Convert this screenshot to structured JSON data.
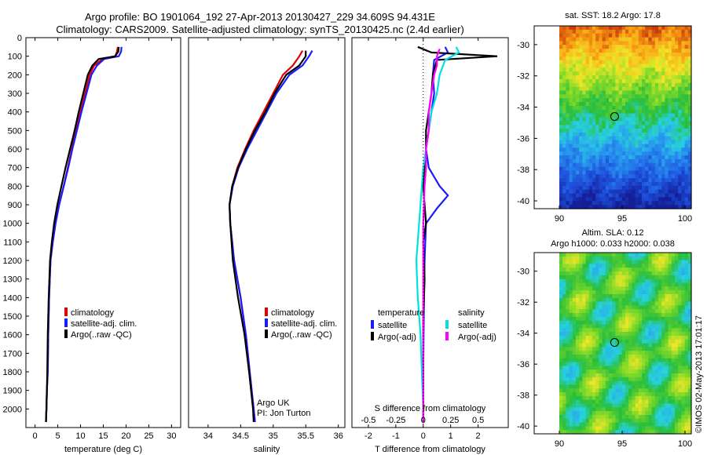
{
  "header": {
    "line1": "Argo profile: BO 1901064_192 27-Apr-2013 20130427_229 34.609S 94.431E",
    "line2": "Climatology: CARS2009. Satellite-adjusted climatology: synTS_20130425.nc (2.4d earlier)"
  },
  "colors": {
    "climatology": "#e00000",
    "satellite": "#1a1aff",
    "argo": "#000000",
    "satellite_salt": "#00e0e0",
    "argo_salt_adj": "#ff00ff"
  },
  "chart_data": [
    {
      "type": "line",
      "xlabel": "temperature (deg C)",
      "ylabel": "",
      "xlim": [
        -2,
        32
      ],
      "ylim": [
        2100,
        0
      ],
      "xticks": [
        0,
        5,
        10,
        15,
        20,
        25,
        30
      ],
      "yticks": [
        0,
        100,
        200,
        300,
        400,
        500,
        600,
        700,
        800,
        900,
        1000,
        1100,
        1200,
        1300,
        1400,
        1500,
        1600,
        1700,
        1800,
        1900,
        2000
      ],
      "legend": [
        "climatology",
        "satellite-adj. clim.",
        "Argo(..raw -QC)"
      ],
      "series": [
        {
          "name": "climatology",
          "color": "#e00000",
          "x": [
            18.2,
            18.0,
            17.6,
            14.8,
            13.0,
            12.0,
            11.0,
            10.0,
            9.0,
            8.1,
            7.2,
            6.3,
            5.3,
            4.5,
            3.9,
            3.4,
            3.1,
            2.9,
            2.8,
            2.6,
            2.5,
            2.4
          ],
          "y": [
            50,
            75,
            100,
            115,
            150,
            200,
            300,
            400,
            500,
            600,
            700,
            800,
            900,
            1000,
            1100,
            1200,
            1400,
            1600,
            1800,
            1900,
            2000,
            2070
          ]
        },
        {
          "name": "satellite-adj. clim.",
          "color": "#1a1aff",
          "x": [
            19.0,
            18.9,
            18.4,
            15.2,
            13.6,
            12.4,
            11.3,
            10.2,
            9.2,
            8.2,
            7.3,
            6.3,
            5.3,
            4.5,
            3.9,
            3.4,
            3.1,
            2.9,
            2.8,
            2.6,
            2.5,
            2.4
          ],
          "y": [
            50,
            75,
            100,
            115,
            150,
            200,
            300,
            400,
            500,
            600,
            700,
            800,
            900,
            1000,
            1100,
            1200,
            1400,
            1600,
            1800,
            1900,
            2000,
            2070
          ]
        },
        {
          "name": "Argo(..raw -QC)",
          "color": "#000000",
          "x": [
            18.4,
            18.3,
            17.6,
            14.0,
            12.6,
            11.6,
            10.6,
            9.6,
            8.7,
            7.7,
            6.7,
            5.8,
            4.9,
            4.2,
            3.7,
            3.3,
            3.0,
            2.8,
            2.7,
            2.6,
            2.5,
            2.4
          ],
          "y": [
            50,
            75,
            100,
            115,
            150,
            200,
            300,
            400,
            500,
            600,
            700,
            800,
            900,
            1000,
            1100,
            1200,
            1400,
            1600,
            1800,
            1900,
            2000,
            2070
          ]
        }
      ]
    },
    {
      "type": "line",
      "xlabel": "salinity",
      "ylabel": "",
      "xlim": [
        33.7,
        36.1
      ],
      "ylim": [
        2100,
        0
      ],
      "xticks": [
        34,
        34.5,
        35,
        35.5,
        36
      ],
      "yticks": [],
      "legend": [
        "climatology",
        "satellite-adj. clim.",
        "Argo(..raw -QC)"
      ],
      "annotation": [
        "Argo UK",
        "PI: Jon Turton"
      ],
      "series": [
        {
          "name": "climatology",
          "color": "#e00000",
          "x": [
            35.45,
            35.4,
            35.3,
            35.15,
            35.0,
            34.85,
            34.7,
            34.57,
            34.45,
            34.37,
            34.33,
            34.34,
            34.4,
            34.5,
            34.58,
            34.64,
            34.7,
            34.72
          ],
          "y": [
            70,
            100,
            150,
            200,
            300,
            400,
            500,
            600,
            700,
            800,
            900,
            1000,
            1200,
            1400,
            1600,
            1800,
            2000,
            2070
          ]
        },
        {
          "name": "satellite-adj. clim.",
          "color": "#1a1aff",
          "x": [
            35.6,
            35.55,
            35.45,
            35.25,
            35.05,
            34.9,
            34.75,
            34.6,
            34.47,
            34.38,
            34.33,
            34.34,
            34.4,
            34.5,
            34.58,
            34.64,
            34.7,
            34.72
          ],
          "y": [
            70,
            100,
            150,
            200,
            300,
            400,
            500,
            600,
            700,
            800,
            900,
            1000,
            1200,
            1400,
            1600,
            1800,
            2000,
            2070
          ]
        },
        {
          "name": "Argo(..raw -QC)",
          "color": "#000000",
          "x": [
            35.5,
            35.5,
            35.4,
            35.2,
            35.02,
            34.88,
            34.72,
            34.58,
            34.46,
            34.37,
            34.33,
            34.34,
            34.38,
            34.46,
            34.56,
            34.63,
            34.69,
            34.7
          ],
          "y": [
            70,
            100,
            150,
            200,
            300,
            400,
            500,
            600,
            700,
            800,
            900,
            1000,
            1200,
            1400,
            1600,
            1800,
            2000,
            2070
          ]
        }
      ]
    },
    {
      "type": "line",
      "xlabel": "T difference from climatology",
      "xlabel_top": "S difference from climatology",
      "xlim": [
        -2.6,
        3.1
      ],
      "ylim": [
        2100,
        0
      ],
      "xticks": [
        -2,
        -1,
        0,
        1,
        2
      ],
      "xticks_top": [
        -0.5,
        -0.25,
        0,
        0.25,
        0.5
      ],
      "yticks": [],
      "legend_groups": [
        {
          "title": "temperature",
          "items": [
            "satellite",
            "Argo(-adj)"
          ]
        },
        {
          "title": "salinity",
          "items": [
            "satellite",
            "Argo(-adj)"
          ]
        }
      ],
      "series": [
        {
          "name": "satellite",
          "group": "temperature",
          "color": "#1a1aff",
          "x": [
            0.8,
            0.9,
            0.4,
            0.35,
            0.4,
            0.3,
            0.2,
            0.1,
            0.2,
            0.4,
            0.6,
            0.9,
            0.5,
            0.1,
            0.05,
            0.02,
            0.0,
            0.0,
            0.0
          ],
          "y": [
            50,
            80,
            120,
            200,
            300,
            400,
            500,
            600,
            700,
            750,
            800,
            850,
            920,
            1000,
            1200,
            1500,
            1800,
            2000,
            2070
          ]
        },
        {
          "name": "Argo(-adj)",
          "group": "temperature",
          "color": "#000000",
          "x": [
            -0.2,
            0.3,
            2.7,
            0.5,
            0.35,
            0.3,
            0.2,
            0.1,
            0.1,
            0.05,
            0.0,
            0.05,
            0.1,
            0.0,
            0.05,
            0.0,
            0.0,
            0.0,
            0.0
          ],
          "y": [
            50,
            80,
            100,
            120,
            200,
            300,
            400,
            500,
            600,
            700,
            800,
            900,
            1000,
            1100,
            1300,
            1500,
            1800,
            2000,
            2070
          ]
        },
        {
          "name": "satellite",
          "group": "salinity",
          "color": "#00e0e0",
          "x": [
            1.2,
            1.3,
            0.8,
            0.6,
            0.5,
            0.3,
            0.2,
            0.1,
            0.0,
            -0.05,
            -0.1,
            -0.15,
            -0.2,
            -0.25,
            -0.2,
            -0.1,
            -0.05,
            0.0,
            0.0
          ],
          "y": [
            50,
            80,
            120,
            200,
            300,
            400,
            500,
            600,
            700,
            800,
            900,
            1000,
            1100,
            1200,
            1400,
            1600,
            1800,
            2000,
            2070
          ]
        },
        {
          "name": "Argo(-adj)",
          "group": "salinity",
          "color": "#ff00ff",
          "x": [
            0.6,
            0.5,
            0.5,
            0.4,
            0.3,
            0.2,
            0.2,
            0.1,
            0.1,
            0.05,
            0.0,
            0.0,
            0.0,
            0.0
          ],
          "y": [
            60,
            100,
            150,
            200,
            300,
            400,
            500,
            600,
            700,
            800,
            1000,
            1300,
            1700,
            2070
          ]
        }
      ]
    },
    {
      "type": "heatmap",
      "title": "sat. SST: 18.2 Argo: 17.8",
      "xlim": [
        88,
        100.5
      ],
      "ylim": [
        -40.5,
        -28.8
      ],
      "xticks": [
        90,
        95,
        100
      ],
      "yticks": [
        -30,
        -32,
        -34,
        -36,
        -38,
        -40
      ],
      "field": "SST",
      "marker": {
        "lon": 94.4,
        "lat": -34.6
      }
    },
    {
      "type": "heatmap",
      "title": "Altim. SLA: 0.12",
      "subtitle": "Argo h1000: 0.033 h2000: 0.038",
      "xlim": [
        88,
        100.5
      ],
      "ylim": [
        -40.5,
        -28.8
      ],
      "xticks": [
        90,
        95,
        100
      ],
      "yticks": [
        -30,
        -32,
        -34,
        -36,
        -38,
        -40
      ],
      "field": "SLA",
      "marker": {
        "lon": 94.4,
        "lat": -34.6
      }
    }
  ],
  "footer_vertical": "©IMOS 02-May-2013 17:01:17"
}
